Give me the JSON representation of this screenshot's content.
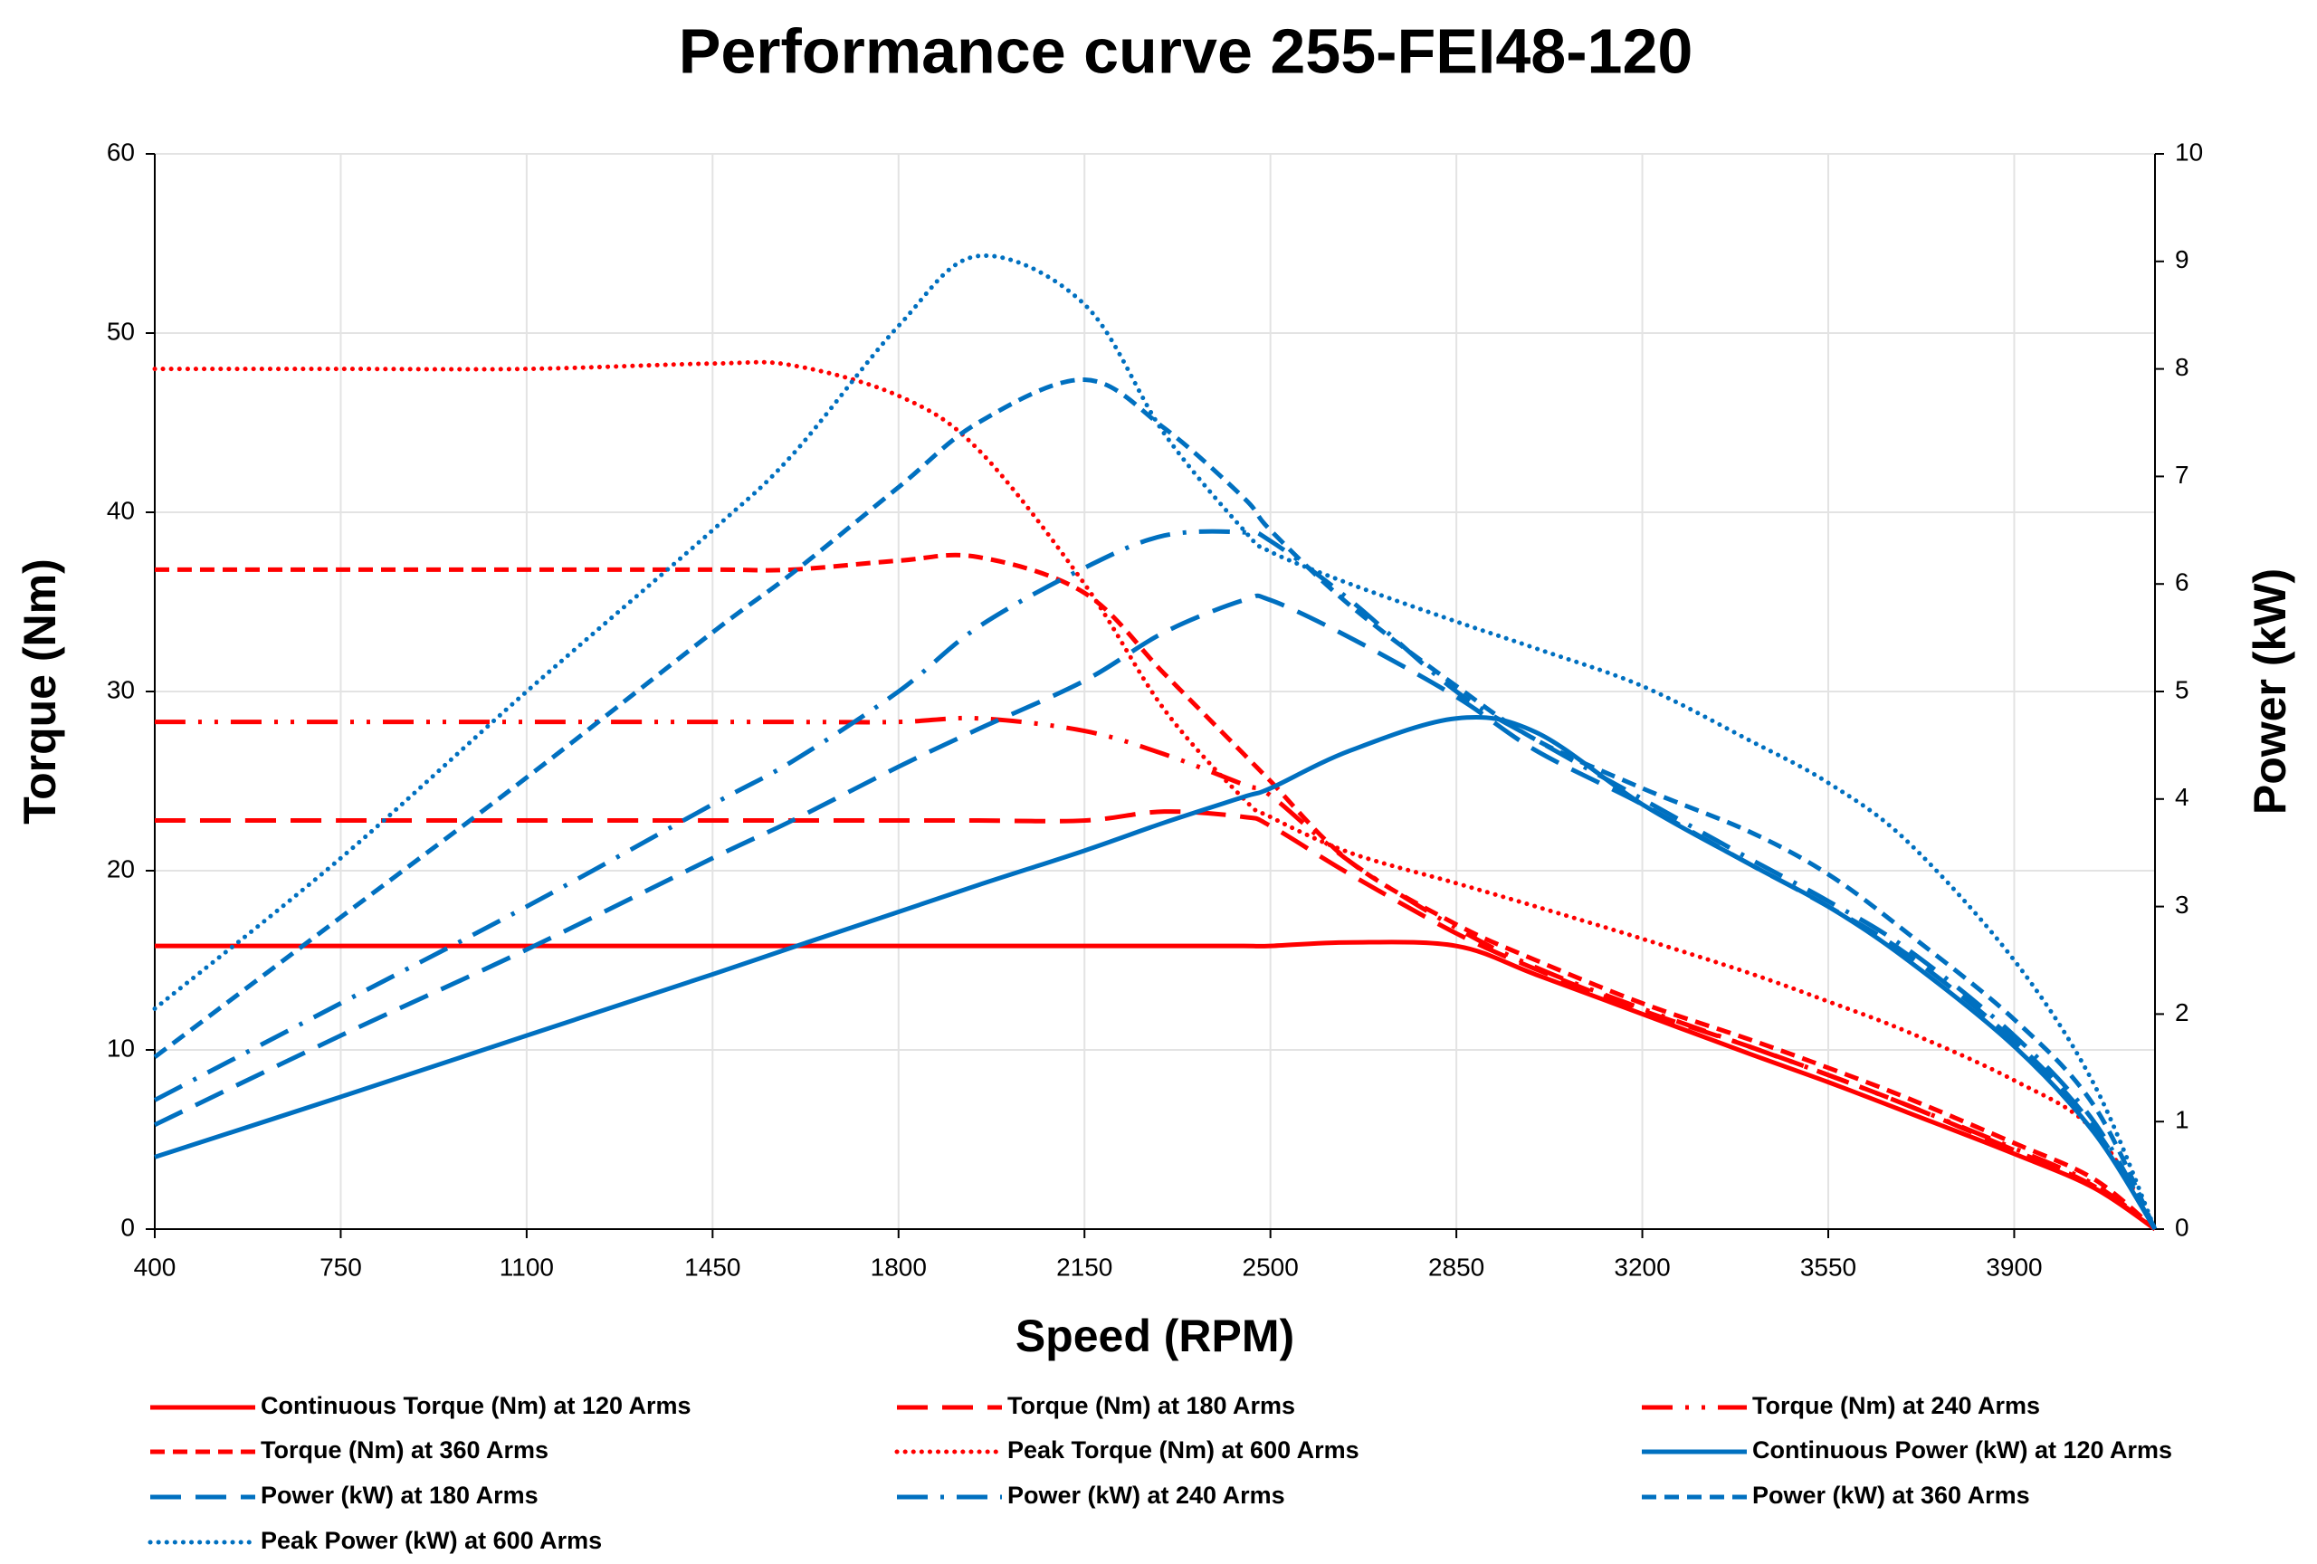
{
  "chart_data": {
    "type": "line",
    "title": "Performance curve 255-FEI48-120",
    "x_label": "Speed (RPM)",
    "y_label": "Torque (Nm)",
    "y2_label": "Power (kW)",
    "x": [
      400,
      750,
      1100,
      1450,
      1600,
      1800,
      1950,
      2150,
      2300,
      2450,
      2500,
      2650,
      2850,
      3000,
      3200,
      3400,
      3550,
      3700,
      3900,
      4050,
      4165
    ],
    "xlim": [
      400,
      4165
    ],
    "xticks": [
      400,
      750,
      1100,
      1450,
      1800,
      2150,
      2500,
      2850,
      3200,
      3550,
      3900
    ],
    "ylim": [
      0,
      60
    ],
    "yticks": [
      0,
      10,
      20,
      30,
      40,
      50,
      60
    ],
    "y2lim": [
      0,
      10
    ],
    "y2ticks": [
      0,
      1,
      2,
      3,
      4,
      5,
      6,
      7,
      8,
      9,
      10
    ],
    "grid": true,
    "series": [
      {
        "name": "Continuous Torque (Nm) at 120 Arms",
        "color": "#ff0000",
        "style": "solid",
        "axis": "y",
        "values": [
          15.8,
          15.8,
          15.8,
          15.8,
          15.8,
          15.8,
          15.8,
          15.8,
          15.8,
          15.8,
          15.8,
          16.0,
          15.8,
          14.2,
          12.0,
          9.8,
          8.2,
          6.5,
          4.2,
          2.3,
          0
        ]
      },
      {
        "name": "Torque (Nm) at 180 Arms",
        "color": "#ff0000",
        "style": "long-dash",
        "axis": "y",
        "values": [
          22.8,
          22.8,
          22.8,
          22.8,
          22.8,
          22.8,
          22.8,
          22.8,
          23.3,
          23.0,
          22.5,
          19.8,
          16.5,
          14.5,
          12.2,
          10.2,
          8.6,
          6.9,
          4.4,
          2.4,
          0
        ]
      },
      {
        "name": "Torque (Nm) at 240 Arms",
        "color": "#ff0000",
        "style": "dash-dot-dot",
        "axis": "y",
        "values": [
          28.3,
          28.3,
          28.3,
          28.3,
          28.3,
          28.3,
          28.5,
          27.8,
          26.5,
          24.8,
          24.2,
          20.5,
          16.8,
          14.6,
          12.3,
          10.2,
          8.6,
          6.9,
          4.5,
          2.5,
          0
        ]
      },
      {
        "name": "Torque (Nm) at 360 Arms",
        "color": "#ff0000",
        "style": "dash",
        "axis": "y",
        "values": [
          36.8,
          36.8,
          36.8,
          36.8,
          36.8,
          37.3,
          37.5,
          35.5,
          31,
          26.5,
          25,
          20.5,
          17,
          15,
          12.6,
          10.6,
          9.0,
          7.3,
          4.8,
          2.8,
          0
        ]
      },
      {
        "name": "Peak Torque (Nm) at 600 Arms",
        "color": "#ff0000",
        "style": "dot",
        "axis": "y",
        "values": [
          48,
          48,
          48,
          48.3,
          48.2,
          46.5,
          43.5,
          36,
          29,
          24,
          23,
          21,
          19.3,
          18,
          16.2,
          14.3,
          12.7,
          11,
          8.3,
          5.5,
          0
        ]
      },
      {
        "name": "Continuous Power (kW) at 120 Arms",
        "color": "#0070c0",
        "style": "solid",
        "axis": "y2",
        "values": [
          0.67,
          1.23,
          1.8,
          2.37,
          2.62,
          2.95,
          3.2,
          3.52,
          3.78,
          4.02,
          4.1,
          4.45,
          4.75,
          4.62,
          3.95,
          3.4,
          3.0,
          2.5,
          1.7,
          0.9,
          0
        ]
      },
      {
        "name": "Power (kW) at 180 Arms",
        "color": "#0070c0",
        "style": "long-dash",
        "axis": "y2",
        "values": [
          0.97,
          1.8,
          2.6,
          3.45,
          3.8,
          4.3,
          4.65,
          5.1,
          5.55,
          5.85,
          5.85,
          5.5,
          4.95,
          4.45,
          3.95,
          3.4,
          3.0,
          2.55,
          1.75,
          0.95,
          0
        ]
      },
      {
        "name": "Power (kW) at 240 Arms",
        "color": "#0070c0",
        "style": "dash-dot",
        "axis": "y2",
        "values": [
          1.2,
          2.1,
          3.0,
          3.95,
          4.35,
          5.0,
          5.6,
          6.15,
          6.45,
          6.48,
          6.4,
          5.85,
          5.0,
          4.55,
          4.0,
          3.45,
          3.05,
          2.6,
          1.8,
          1.0,
          0
        ]
      },
      {
        "name": "Power (kW) at 360 Arms",
        "color": "#0070c0",
        "style": "dash",
        "axis": "y2",
        "values": [
          1.6,
          2.9,
          4.2,
          5.55,
          6.1,
          6.9,
          7.5,
          7.9,
          7.45,
          6.8,
          6.5,
          5.8,
          5.05,
          4.55,
          4.1,
          3.7,
          3.3,
          2.75,
          1.95,
          1.15,
          0
        ]
      },
      {
        "name": "Peak Power (kW) at 600 Arms",
        "color": "#0070c0",
        "style": "dot",
        "axis": "y2",
        "values": [
          2.05,
          3.45,
          5.0,
          6.5,
          7.2,
          8.4,
          9.05,
          8.6,
          7.4,
          6.5,
          6.3,
          6.0,
          5.65,
          5.4,
          5.05,
          4.55,
          4.15,
          3.6,
          2.5,
          1.35,
          0
        ]
      }
    ]
  }
}
